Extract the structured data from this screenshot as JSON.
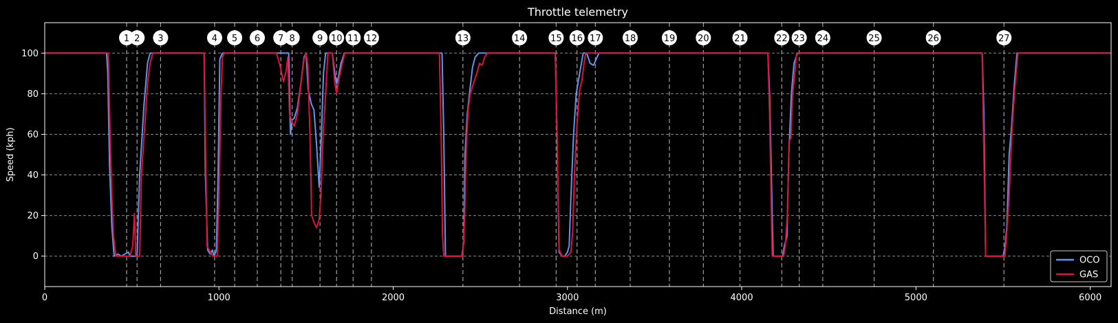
{
  "chart_data": {
    "type": "line",
    "title": "Throttle telemetry",
    "xlabel": "Distance (m)",
    "ylabel": "Speed (kph)",
    "xlim": [
      0,
      6120
    ],
    "ylim": [
      -15,
      115
    ],
    "x_ticks": [
      0,
      1000,
      2000,
      3000,
      4000,
      5000,
      6000
    ],
    "y_ticks": [
      0,
      20,
      40,
      60,
      80,
      100
    ],
    "grid": "y-dashed",
    "legend_position": "bottom-right",
    "series": [
      {
        "name": "OCO",
        "color": "#6495ed",
        "points": [
          [
            0,
            100
          ],
          [
            355,
            100
          ],
          [
            362,
            90
          ],
          [
            372,
            45
          ],
          [
            385,
            15
          ],
          [
            398,
            0
          ],
          [
            420,
            1
          ],
          [
            440,
            0
          ],
          [
            460,
            1
          ],
          [
            480,
            2
          ],
          [
            490,
            0
          ],
          [
            500,
            0
          ],
          [
            530,
            0
          ],
          [
            545,
            40
          ],
          [
            570,
            75
          ],
          [
            590,
            95
          ],
          [
            605,
            100
          ],
          [
            900,
            100
          ],
          [
            915,
            100
          ],
          [
            922,
            40
          ],
          [
            935,
            3
          ],
          [
            950,
            1
          ],
          [
            962,
            3
          ],
          [
            972,
            0
          ],
          [
            985,
            3
          ],
          [
            995,
            40
          ],
          [
            1005,
            97
          ],
          [
            1020,
            100
          ],
          [
            1340,
            100
          ],
          [
            1400,
            100
          ],
          [
            1410,
            60
          ],
          [
            1420,
            67
          ],
          [
            1432,
            68
          ],
          [
            1450,
            73
          ],
          [
            1470,
            85
          ],
          [
            1488,
            98
          ],
          [
            1500,
            100
          ],
          [
            1512,
            82
          ],
          [
            1530,
            75
          ],
          [
            1545,
            72
          ],
          [
            1560,
            55
          ],
          [
            1575,
            34
          ],
          [
            1588,
            60
          ],
          [
            1600,
            90
          ],
          [
            1612,
            100
          ],
          [
            1650,
            100
          ],
          [
            1665,
            90
          ],
          [
            1675,
            85
          ],
          [
            1685,
            88
          ],
          [
            1700,
            95
          ],
          [
            1720,
            100
          ],
          [
            2280,
            100
          ],
          [
            2290,
            60
          ],
          [
            2300,
            0
          ],
          [
            2395,
            0
          ],
          [
            2405,
            7
          ],
          [
            2412,
            50
          ],
          [
            2425,
            70
          ],
          [
            2440,
            82
          ],
          [
            2455,
            93
          ],
          [
            2470,
            98
          ],
          [
            2490,
            100
          ],
          [
            2500,
            100
          ],
          [
            2920,
            100
          ],
          [
            2930,
            100
          ],
          [
            2940,
            60
          ],
          [
            2952,
            2
          ],
          [
            2970,
            0
          ],
          [
            2985,
            0
          ],
          [
            3000,
            2
          ],
          [
            3010,
            5
          ],
          [
            3020,
            30
          ],
          [
            3035,
            60
          ],
          [
            3050,
            80
          ],
          [
            3070,
            90
          ],
          [
            3080,
            95
          ],
          [
            3090,
            100
          ],
          [
            3110,
            100
          ],
          [
            3130,
            95
          ],
          [
            3150,
            94
          ],
          [
            3165,
            97
          ],
          [
            3180,
            100
          ],
          [
            3220,
            100
          ],
          [
            4150,
            100
          ],
          [
            4160,
            80
          ],
          [
            4180,
            0
          ],
          [
            4235,
            0
          ],
          [
            4245,
            5
          ],
          [
            4260,
            10
          ],
          [
            4270,
            50
          ],
          [
            4285,
            80
          ],
          [
            4300,
            95
          ],
          [
            4320,
            100
          ],
          [
            4340,
            100
          ],
          [
            5380,
            100
          ],
          [
            5390,
            70
          ],
          [
            5400,
            0
          ],
          [
            5500,
            0
          ],
          [
            5512,
            5
          ],
          [
            5522,
            15
          ],
          [
            5535,
            50
          ],
          [
            5550,
            65
          ],
          [
            5565,
            85
          ],
          [
            5580,
            100
          ],
          [
            6120,
            100
          ]
        ]
      },
      {
        "name": "GAS",
        "color": "#dc143c",
        "points": [
          [
            0,
            100
          ],
          [
            365,
            100
          ],
          [
            375,
            60
          ],
          [
            385,
            30
          ],
          [
            395,
            10
          ],
          [
            408,
            0
          ],
          [
            420,
            0
          ],
          [
            490,
            0
          ],
          [
            505,
            5
          ],
          [
            515,
            21
          ],
          [
            522,
            0
          ],
          [
            545,
            0
          ],
          [
            555,
            40
          ],
          [
            575,
            65
          ],
          [
            590,
            85
          ],
          [
            605,
            95
          ],
          [
            620,
            100
          ],
          [
            900,
            100
          ],
          [
            915,
            100
          ],
          [
            922,
            60
          ],
          [
            932,
            5
          ],
          [
            950,
            2
          ],
          [
            965,
            0
          ],
          [
            990,
            0
          ],
          [
            1000,
            30
          ],
          [
            1012,
            80
          ],
          [
            1020,
            98
          ],
          [
            1030,
            100
          ],
          [
            1330,
            100
          ],
          [
            1350,
            94
          ],
          [
            1370,
            86
          ],
          [
            1385,
            91
          ],
          [
            1395,
            98
          ],
          [
            1405,
            70
          ],
          [
            1420,
            66
          ],
          [
            1432,
            64
          ],
          [
            1450,
            70
          ],
          [
            1470,
            85
          ],
          [
            1488,
            97
          ],
          [
            1500,
            100
          ],
          [
            1510,
            94
          ],
          [
            1522,
            60
          ],
          [
            1532,
            20
          ],
          [
            1548,
            16
          ],
          [
            1560,
            14
          ],
          [
            1575,
            18
          ],
          [
            1585,
            30
          ],
          [
            1598,
            60
          ],
          [
            1612,
            80
          ],
          [
            1625,
            100
          ],
          [
            1650,
            100
          ],
          [
            1665,
            85
          ],
          [
            1675,
            80
          ],
          [
            1690,
            88
          ],
          [
            1708,
            95
          ],
          [
            1722,
            100
          ],
          [
            2265,
            100
          ],
          [
            2275,
            60
          ],
          [
            2283,
            10
          ],
          [
            2290,
            0
          ],
          [
            2400,
            0
          ],
          [
            2410,
            20
          ],
          [
            2420,
            55
          ],
          [
            2430,
            72
          ],
          [
            2442,
            80
          ],
          [
            2460,
            85
          ],
          [
            2480,
            90
          ],
          [
            2495,
            95
          ],
          [
            2510,
            94
          ],
          [
            2525,
            98
          ],
          [
            2540,
            100
          ],
          [
            2930,
            100
          ],
          [
            2940,
            60
          ],
          [
            2952,
            3
          ],
          [
            2970,
            0
          ],
          [
            3000,
            0
          ],
          [
            3020,
            2
          ],
          [
            3030,
            12
          ],
          [
            3040,
            40
          ],
          [
            3055,
            65
          ],
          [
            3070,
            82
          ],
          [
            3082,
            86
          ],
          [
            3095,
            95
          ],
          [
            3105,
            100
          ],
          [
            4150,
            100
          ],
          [
            4160,
            70
          ],
          [
            4175,
            0
          ],
          [
            4240,
            0
          ],
          [
            4250,
            5
          ],
          [
            4262,
            20
          ],
          [
            4272,
            57
          ],
          [
            4282,
            58
          ],
          [
            4292,
            80
          ],
          [
            4302,
            88
          ],
          [
            4315,
            100
          ],
          [
            4330,
            100
          ],
          [
            5380,
            100
          ],
          [
            5388,
            60
          ],
          [
            5400,
            0
          ],
          [
            5510,
            0
          ],
          [
            5520,
            10
          ],
          [
            5535,
            30
          ],
          [
            5550,
            60
          ],
          [
            5565,
            80
          ],
          [
            5585,
            100
          ],
          [
            6120,
            100
          ]
        ]
      }
    ],
    "corners": [
      {
        "label": "1",
        "distance": 470
      },
      {
        "label": "2",
        "distance": 530
      },
      {
        "label": "3",
        "distance": 665
      },
      {
        "label": "4",
        "distance": 975
      },
      {
        "label": "5",
        "distance": 1090
      },
      {
        "label": "6",
        "distance": 1220
      },
      {
        "label": "7",
        "distance": 1355
      },
      {
        "label": "8",
        "distance": 1420
      },
      {
        "label": "9",
        "distance": 1580
      },
      {
        "label": "10",
        "distance": 1675
      },
      {
        "label": "11",
        "distance": 1770
      },
      {
        "label": "12",
        "distance": 1875
      },
      {
        "label": "13",
        "distance": 2400
      },
      {
        "label": "14",
        "distance": 2725
      },
      {
        "label": "15",
        "distance": 2935
      },
      {
        "label": "16",
        "distance": 3055
      },
      {
        "label": "17",
        "distance": 3160
      },
      {
        "label": "18",
        "distance": 3360
      },
      {
        "label": "19",
        "distance": 3585
      },
      {
        "label": "20",
        "distance": 3780
      },
      {
        "label": "21",
        "distance": 3990
      },
      {
        "label": "22",
        "distance": 4230
      },
      {
        "label": "23",
        "distance": 4330
      },
      {
        "label": "24",
        "distance": 4465
      },
      {
        "label": "25",
        "distance": 4760
      },
      {
        "label": "26",
        "distance": 5100
      },
      {
        "label": "27",
        "distance": 5505
      }
    ]
  }
}
